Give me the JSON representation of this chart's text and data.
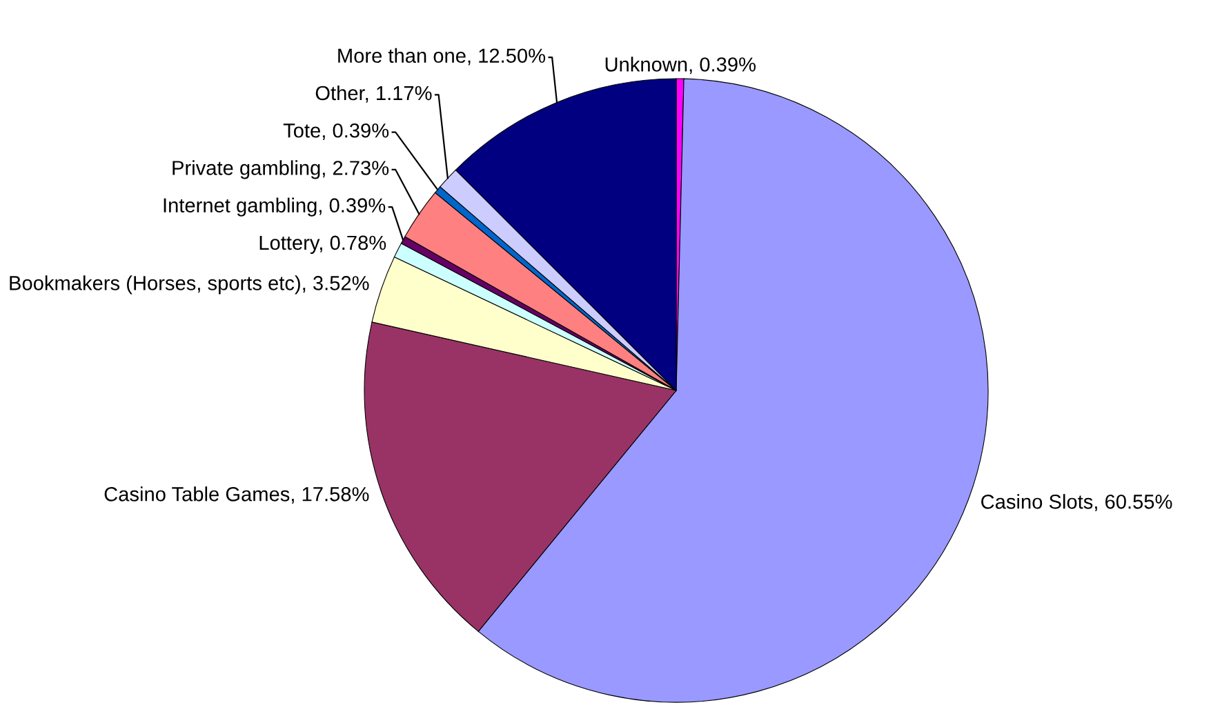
{
  "chart_data": {
    "type": "pie",
    "categories": [
      "Unknown",
      "Casino Slots",
      "Casino Table Games",
      "Bookmakers (Horses, sports etc)",
      "Lottery",
      "Internet gambling",
      "Private gambling",
      "Tote",
      "Other",
      "More than one"
    ],
    "values": [
      0.39,
      60.55,
      17.58,
      3.52,
      0.78,
      0.39,
      2.73,
      0.39,
      1.17,
      12.5
    ],
    "colors": [
      "#ff00ff",
      "#9999ff",
      "#993366",
      "#ffffcc",
      "#ccffff",
      "#660066",
      "#ff8080",
      "#0066cc",
      "#ccccff",
      "#000080"
    ],
    "value_labels": [
      "0.39%",
      "60.55%",
      "17.58%",
      "3.52%",
      "0.78%",
      "0.39%",
      "2.73%",
      "0.39%",
      "1.17%",
      "12.50%"
    ],
    "legend": false
  }
}
